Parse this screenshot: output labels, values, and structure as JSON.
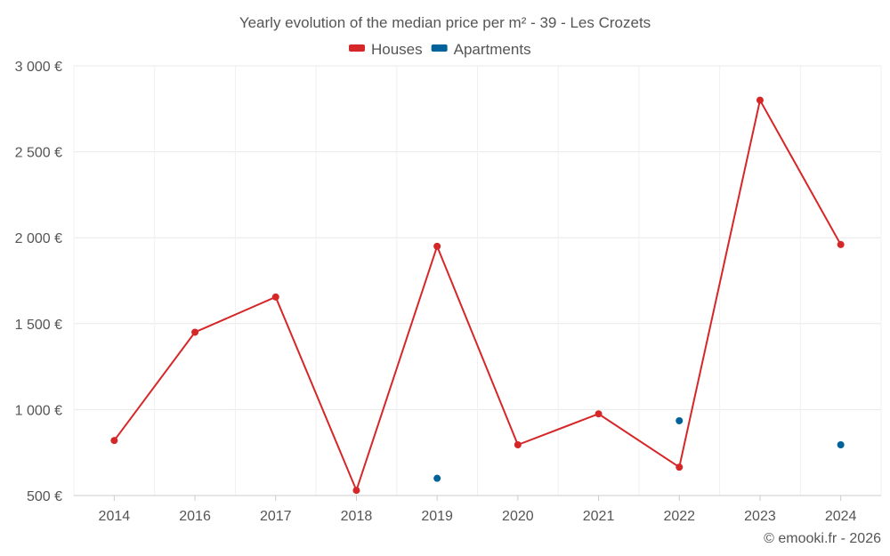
{
  "chart_data": {
    "type": "line",
    "title": "Yearly evolution of the median price per m² - 39 - Les Crozets",
    "xlabel": "",
    "ylabel": "",
    "categories": [
      "2014",
      "2016",
      "2017",
      "2018",
      "2019",
      "2020",
      "2021",
      "2022",
      "2023",
      "2024"
    ],
    "ylim": [
      500,
      3000
    ],
    "yticks": [
      500,
      1000,
      1500,
      2000,
      2500,
      3000
    ],
    "ytick_labels": [
      "500 €",
      "1 000 €",
      "1 500 €",
      "2 000 €",
      "2 500 €",
      "3 000 €"
    ],
    "grid": true,
    "legend_position": "top-center",
    "series": [
      {
        "name": "Houses",
        "color": "#d62728",
        "line": true,
        "values": [
          820,
          1450,
          1655,
          530,
          1950,
          795,
          975,
          665,
          2800,
          1960
        ]
      },
      {
        "name": "Apartments",
        "color": "#00629b",
        "line": false,
        "values": [
          null,
          null,
          null,
          null,
          600,
          null,
          null,
          935,
          null,
          795
        ]
      }
    ]
  },
  "credit": "© emooki.fr - 2026"
}
